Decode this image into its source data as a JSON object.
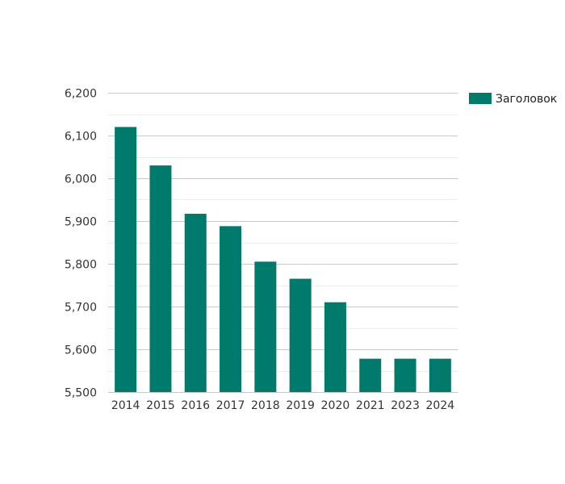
{
  "colors": {
    "bar": "#007A6A",
    "major_grid": "#c8c8c8",
    "minor_grid": "#ececec",
    "axis_text": "#333333",
    "background": "#ffffff"
  },
  "chart_data": {
    "type": "bar",
    "title": "",
    "xlabel": "",
    "ylabel": "",
    "categories": [
      "2014",
      "2015",
      "2016",
      "2017",
      "2018",
      "2019",
      "2020",
      "2021",
      "2023",
      "2024"
    ],
    "series": [
      {
        "name": "Заголовок",
        "values": [
          6120,
          6030,
          5917,
          5888,
          5805,
          5765,
          5710,
          5578,
          5578,
          5578
        ]
      }
    ],
    "ylim": [
      5500,
      6200
    ],
    "y_ticks": [
      5500,
      5600,
      5700,
      5800,
      5900,
      6000,
      6100,
      6200
    ],
    "y_tick_labels": [
      "5,500",
      "5,600",
      "5,700",
      "5,800",
      "5,900",
      "6,000",
      "6,100",
      "6,200"
    ],
    "grid": true,
    "minor_grid": true,
    "legend_position": "top-right"
  }
}
